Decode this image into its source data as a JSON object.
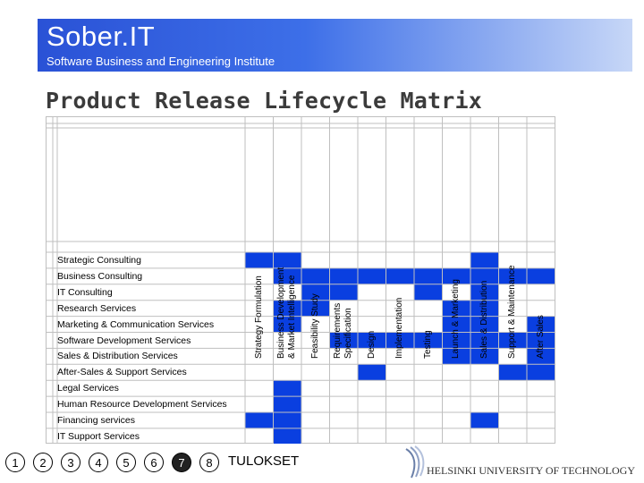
{
  "header": {
    "title": "Sober.IT",
    "subtitle": "Software Business and Engineering Institute"
  },
  "slide_title": "Product Release Lifecycle Matrix",
  "matrix": {
    "columns": [
      [
        "Strategy Formulation"
      ],
      [
        "Business Development",
        "& Market Intelligence"
      ],
      [
        "Feasibility Study"
      ],
      [
        "Requirements",
        "Specification"
      ],
      [
        "Design"
      ],
      [
        "Implementation"
      ],
      [
        "Testing"
      ],
      [
        "Launch & Marketing"
      ],
      [
        "Sales & Distribution"
      ],
      [
        "Support & Maintenance"
      ],
      [
        "After Sales"
      ]
    ],
    "rows": [
      {
        "label": "Strategic Consulting",
        "cells": [
          1,
          1,
          0,
          0,
          0,
          0,
          0,
          0,
          1,
          0,
          0
        ]
      },
      {
        "label": "Business Consulting",
        "cells": [
          0,
          1,
          1,
          1,
          1,
          1,
          1,
          1,
          1,
          1,
          1
        ]
      },
      {
        "label": "IT Consulting",
        "cells": [
          0,
          0,
          1,
          1,
          0,
          0,
          1,
          0,
          1,
          0,
          0
        ]
      },
      {
        "label": "Research Services",
        "cells": [
          0,
          1,
          1,
          0,
          0,
          0,
          0,
          1,
          1,
          0,
          0
        ]
      },
      {
        "label": "Marketing & Communication Services",
        "cells": [
          0,
          1,
          0,
          0,
          0,
          0,
          0,
          1,
          1,
          0,
          1
        ]
      },
      {
        "label": "Software Development Services",
        "cells": [
          0,
          0,
          0,
          1,
          1,
          1,
          1,
          1,
          1,
          1,
          1
        ]
      },
      {
        "label": "Sales & Distribution Services",
        "cells": [
          0,
          0,
          0,
          0,
          0,
          0,
          0,
          1,
          1,
          0,
          1
        ]
      },
      {
        "label": "After-Sales & Support Services",
        "cells": [
          0,
          0,
          0,
          0,
          1,
          0,
          0,
          0,
          0,
          1,
          1
        ]
      },
      {
        "label": "Legal Services",
        "cells": [
          0,
          1,
          0,
          0,
          0,
          0,
          0,
          0,
          0,
          0,
          0
        ]
      },
      {
        "label": "Human Resource Development Services",
        "cells": [
          0,
          1,
          0,
          0,
          0,
          0,
          0,
          0,
          0,
          0,
          0
        ]
      },
      {
        "label": "Financing services",
        "cells": [
          1,
          1,
          0,
          0,
          0,
          0,
          0,
          0,
          1,
          0,
          0
        ]
      },
      {
        "label": "IT Support Services",
        "cells": [
          0,
          1,
          0,
          0,
          0,
          0,
          0,
          0,
          0,
          0,
          0
        ]
      }
    ],
    "fill_color": "#0a3fe0",
    "grid_color": "#bfbfbf"
  },
  "footer": {
    "pages": [
      "1",
      "2",
      "3",
      "4",
      "5",
      "6",
      "7",
      "8"
    ],
    "active_page": "7",
    "results_label": "TULOKSET",
    "university": "HELSINKI UNIVERSITY OF TECHNOLOGY"
  }
}
